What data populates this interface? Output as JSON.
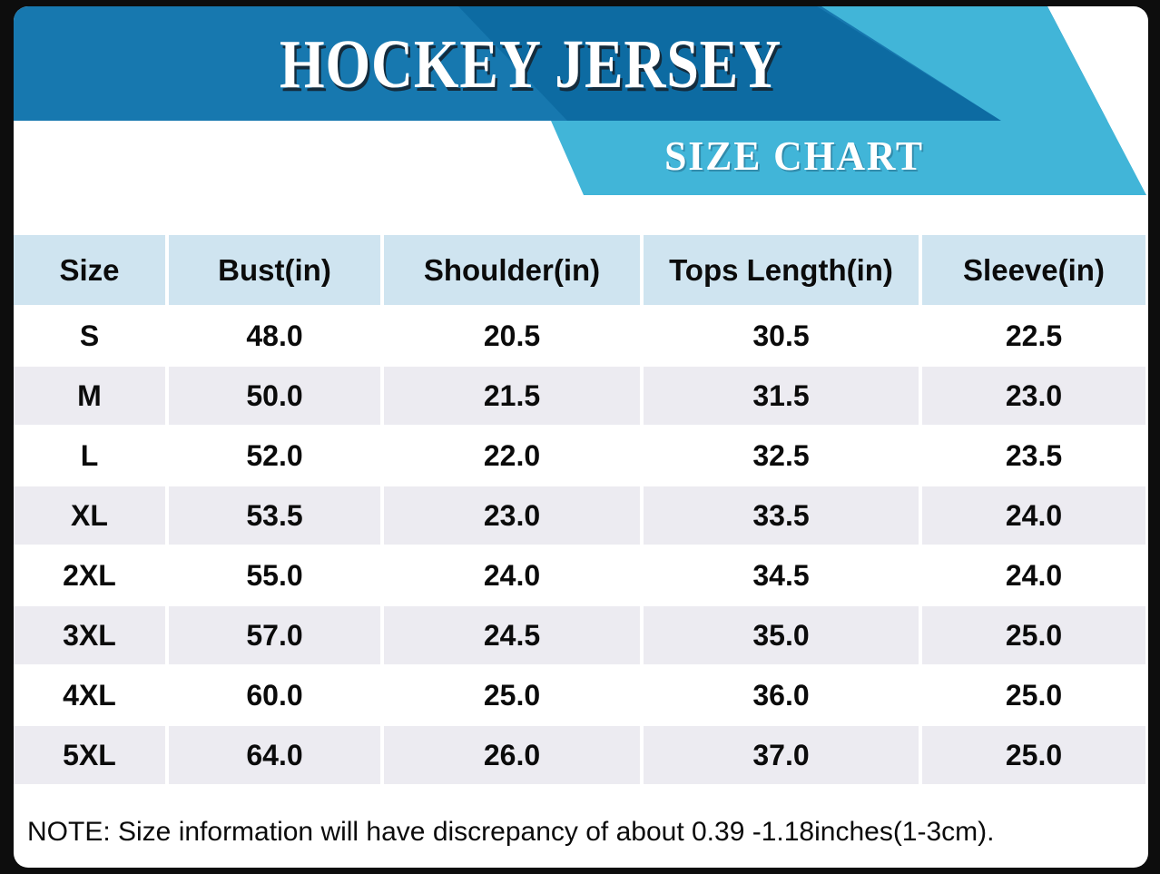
{
  "header": {
    "title": "HOCKEY JERSEY",
    "subtitle": "SIZE CHART"
  },
  "colors": {
    "banner_blue": "#1778AF",
    "banner_dark_blue": "#0D6BA2",
    "ribbon_light_blue": "#41B5D8",
    "table_header_bg": "#CFE4F0",
    "alt_row_bg": "#ECEBF1",
    "frame_black": "#0D0D0D",
    "text_white": "#FFFFFF",
    "text_black": "#0B0B0B"
  },
  "table": {
    "columns": [
      "Size",
      "Bust(in)",
      "Shoulder(in)",
      "Tops Length(in)",
      "Sleeve(in)"
    ],
    "rows": [
      {
        "size": "S",
        "values": [
          "48.0",
          "20.5",
          "30.5",
          "22.5"
        ]
      },
      {
        "size": "M",
        "values": [
          "50.0",
          "21.5",
          "31.5",
          "23.0"
        ]
      },
      {
        "size": "L",
        "values": [
          "52.0",
          "22.0",
          "32.5",
          "23.5"
        ]
      },
      {
        "size": "XL",
        "values": [
          "53.5",
          "23.0",
          "33.5",
          "24.0"
        ]
      },
      {
        "size": "2XL",
        "values": [
          "55.0",
          "24.0",
          "34.5",
          "24.0"
        ]
      },
      {
        "size": "3XL",
        "values": [
          "57.0",
          "24.5",
          "35.0",
          "25.0"
        ]
      },
      {
        "size": "4XL",
        "values": [
          "60.0",
          "25.0",
          "36.0",
          "25.0"
        ]
      },
      {
        "size": "5XL",
        "values": [
          "64.0",
          "26.0",
          "37.0",
          "25.0"
        ]
      }
    ]
  },
  "note": {
    "text": "NOTE: Size information will have discrepancy of about 0.39 -1.18inches(1-3cm)."
  },
  "chart_data": {
    "type": "table",
    "title": "HOCKEY JERSEY SIZE CHART",
    "columns": [
      "Size",
      "Bust(in)",
      "Shoulder(in)",
      "Tops Length(in)",
      "Sleeve(in)"
    ],
    "rows": [
      [
        "S",
        48.0,
        20.5,
        30.5,
        22.5
      ],
      [
        "M",
        50.0,
        21.5,
        31.5,
        23.0
      ],
      [
        "L",
        52.0,
        22.0,
        32.5,
        23.5
      ],
      [
        "XL",
        53.5,
        23.0,
        33.5,
        24.0
      ],
      [
        "2XL",
        55.0,
        24.0,
        34.5,
        24.0
      ],
      [
        "3XL",
        57.0,
        24.5,
        35.0,
        25.0
      ],
      [
        "4XL",
        60.0,
        25.0,
        36.0,
        25.0
      ],
      [
        "5XL",
        64.0,
        26.0,
        37.0,
        25.0
      ]
    ],
    "units": "inches",
    "note": "Size information will have discrepancy of about 0.39 -1.18inches(1-3cm)."
  }
}
